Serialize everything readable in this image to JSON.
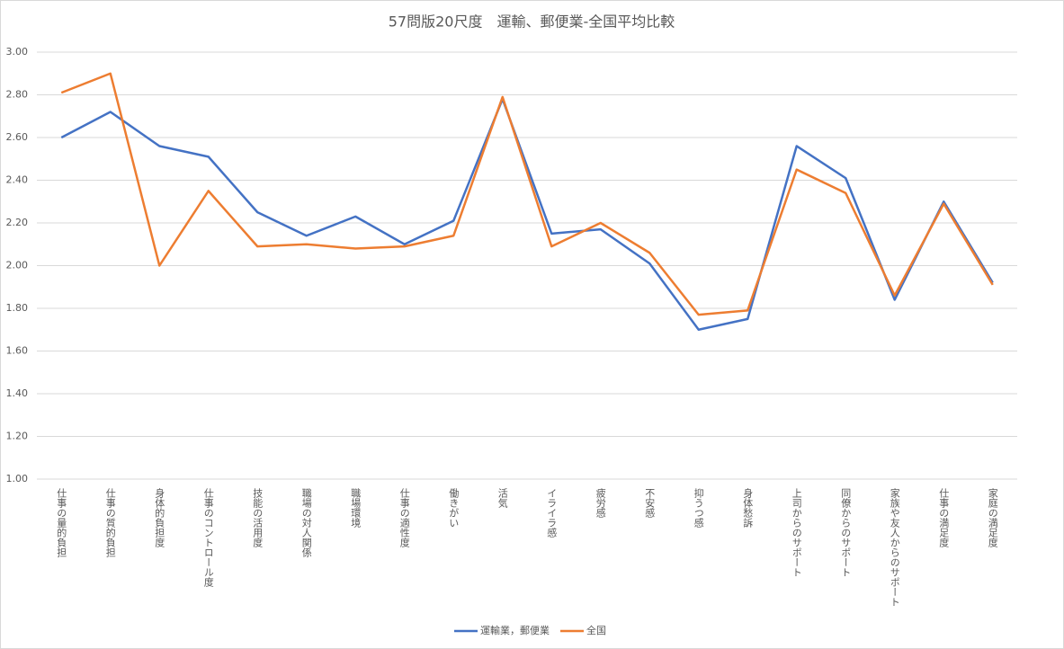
{
  "chart_data": {
    "type": "line",
    "title": "57問版20尺度　運輸、郵便業-全国平均比較",
    "categories": [
      "仕事の量的負担",
      "仕事の質的負担",
      "身体的負担度",
      "仕事のコントロール度",
      "技能の活用度",
      "職場の対人関係",
      "職場環境",
      "仕事の適性度",
      "働きがい",
      "活気",
      "イライラ感",
      "疲労感",
      "不安感",
      "抑うつ感",
      "身体愁訴",
      "上司からのサポート",
      "同僚からのサポート",
      "家族や友人からのサポート",
      "仕事の満足度",
      "家庭の満足度"
    ],
    "series": [
      {
        "name": "運輸業，郵便業",
        "color": "#4472c4",
        "values": [
          2.6,
          2.72,
          2.56,
          2.51,
          2.25,
          2.14,
          2.23,
          2.1,
          2.21,
          2.78,
          2.15,
          2.17,
          2.01,
          1.7,
          1.75,
          2.56,
          2.41,
          1.84,
          2.3,
          1.92
        ]
      },
      {
        "name": "全国",
        "color": "#ed7d31",
        "values": [
          2.81,
          2.9,
          2.0,
          2.35,
          2.09,
          2.1,
          2.08,
          2.09,
          2.14,
          2.79,
          2.09,
          2.2,
          2.06,
          1.77,
          1.79,
          2.45,
          2.34,
          1.86,
          2.29,
          1.91
        ]
      }
    ],
    "ylim": [
      1,
      3
    ],
    "yticks": [
      {
        "value": 1,
        "label": "1.00"
      },
      {
        "value": 1.2,
        "label": "1.20"
      },
      {
        "value": 1.4,
        "label": "1.40"
      },
      {
        "value": 1.6,
        "label": "1.60"
      },
      {
        "value": 1.8,
        "label": "1.80"
      },
      {
        "value": 2,
        "label": "2.00"
      },
      {
        "value": 2.2,
        "label": "2.20"
      },
      {
        "value": 2.4,
        "label": "2.40"
      },
      {
        "value": 2.6,
        "label": "2.60"
      },
      {
        "value": 2.8,
        "label": "2.80"
      },
      {
        "value": 3,
        "label": "3.00"
      }
    ],
    "grid": true,
    "legend": "bottom"
  }
}
